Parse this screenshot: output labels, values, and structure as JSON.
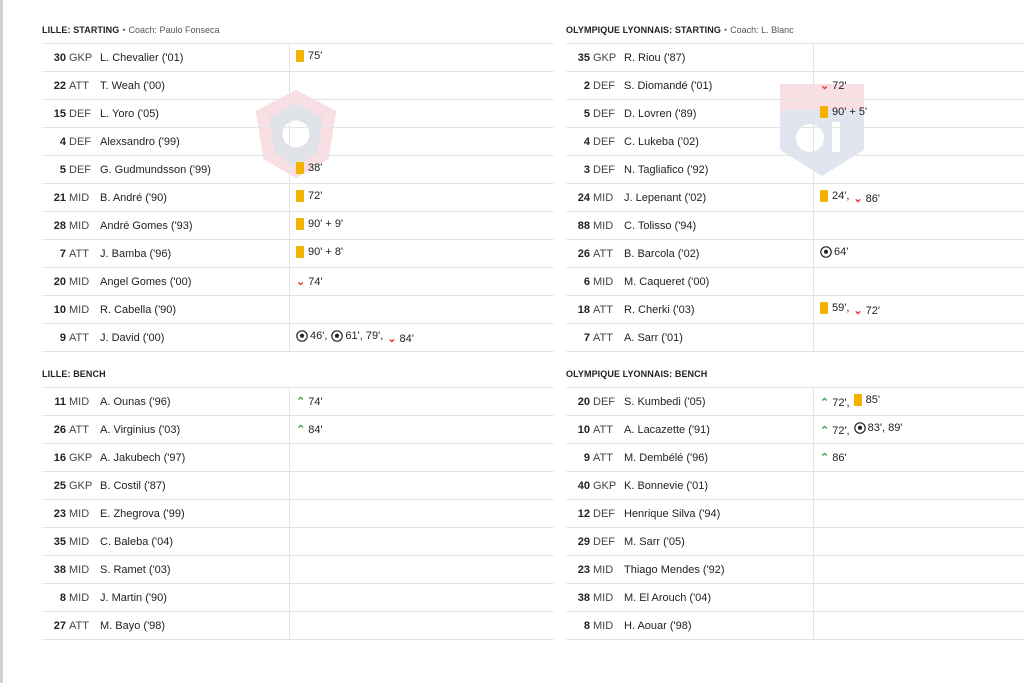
{
  "lille_starting": {
    "title": "LILLE: STARTING",
    "coach": "Coach: Paulo Fonseca",
    "rows": [
      {
        "num": "30",
        "pos": "GKP",
        "name": "L. Chevalier ('01)",
        "events": [
          {
            "t": "yellow",
            "v": "75'"
          }
        ]
      },
      {
        "num": "22",
        "pos": "ATT",
        "name": "T. Weah ('00)",
        "events": []
      },
      {
        "num": "15",
        "pos": "DEF",
        "name": "L. Yoro ('05)",
        "events": []
      },
      {
        "num": "4",
        "pos": "DEF",
        "name": "Alexsandro ('99)",
        "events": []
      },
      {
        "num": "5",
        "pos": "DEF",
        "name": "G. Gudmundsson ('99)",
        "events": [
          {
            "t": "yellow",
            "v": "38'"
          }
        ]
      },
      {
        "num": "21",
        "pos": "MID",
        "name": "B. André ('90)",
        "events": [
          {
            "t": "yellow",
            "v": "72'"
          }
        ]
      },
      {
        "num": "28",
        "pos": "MID",
        "name": "André Gomes ('93)",
        "events": [
          {
            "t": "yellow",
            "v": "90' + 9'"
          }
        ]
      },
      {
        "num": "7",
        "pos": "ATT",
        "name": "J. Bamba ('96)",
        "events": [
          {
            "t": "yellow",
            "v": "90' + 8'"
          }
        ]
      },
      {
        "num": "20",
        "pos": "MID",
        "name": "Angel Gomes ('00)",
        "events": [
          {
            "t": "off",
            "v": "74'"
          }
        ]
      },
      {
        "num": "10",
        "pos": "MID",
        "name": "R. Cabella ('90)",
        "events": []
      },
      {
        "num": "9",
        "pos": "ATT",
        "name": "J. David ('00)",
        "events": [
          {
            "t": "goal",
            "v": "46',"
          },
          {
            "t": "goal",
            "v": "61', 79',"
          },
          {
            "t": "off",
            "v": "84'"
          }
        ]
      }
    ]
  },
  "lille_bench": {
    "title": "LILLE: BENCH",
    "rows": [
      {
        "num": "11",
        "pos": "MID",
        "name": "A. Ounas ('96)",
        "events": [
          {
            "t": "on",
            "v": "74'"
          }
        ]
      },
      {
        "num": "26",
        "pos": "ATT",
        "name": "A. Virginius ('03)",
        "events": [
          {
            "t": "on",
            "v": "84'"
          }
        ]
      },
      {
        "num": "16",
        "pos": "GKP",
        "name": "A. Jakubech ('97)",
        "events": []
      },
      {
        "num": "25",
        "pos": "GKP",
        "name": "B. Costil ('87)",
        "events": []
      },
      {
        "num": "23",
        "pos": "MID",
        "name": "E. Zhegrova ('99)",
        "events": []
      },
      {
        "num": "35",
        "pos": "MID",
        "name": "C. Baleba ('04)",
        "events": []
      },
      {
        "num": "38",
        "pos": "MID",
        "name": "S. Ramet ('03)",
        "events": []
      },
      {
        "num": "8",
        "pos": "MID",
        "name": "J. Martin ('90)",
        "events": []
      },
      {
        "num": "27",
        "pos": "ATT",
        "name": "M. Bayo ('98)",
        "events": []
      }
    ]
  },
  "lyon_starting": {
    "title": "OLYMPIQUE LYONNAIS: STARTING",
    "coach": "Coach: L. Blanc",
    "rows": [
      {
        "num": "35",
        "pos": "GKP",
        "name": "R. Riou ('87)",
        "events": []
      },
      {
        "num": "2",
        "pos": "DEF",
        "name": "S. Diomandé ('01)",
        "events": [
          {
            "t": "off",
            "v": "72'"
          }
        ]
      },
      {
        "num": "5",
        "pos": "DEF",
        "name": "D. Lovren ('89)",
        "events": [
          {
            "t": "yellow",
            "v": "90' + 5'"
          }
        ]
      },
      {
        "num": "4",
        "pos": "DEF",
        "name": "C. Lukeba ('02)",
        "events": []
      },
      {
        "num": "3",
        "pos": "DEF",
        "name": "N. Tagliafico ('92)",
        "events": []
      },
      {
        "num": "24",
        "pos": "MID",
        "name": "J. Lepenant ('02)",
        "events": [
          {
            "t": "yellow",
            "v": "24',"
          },
          {
            "t": "off",
            "v": "86'"
          }
        ]
      },
      {
        "num": "88",
        "pos": "MID",
        "name": "C. Tolisso ('94)",
        "events": []
      },
      {
        "num": "26",
        "pos": "ATT",
        "name": "B. Barcola ('02)",
        "events": [
          {
            "t": "goal",
            "v": "64'"
          }
        ]
      },
      {
        "num": "6",
        "pos": "MID",
        "name": "M. Caqueret ('00)",
        "events": []
      },
      {
        "num": "18",
        "pos": "ATT",
        "name": "R. Cherki ('03)",
        "events": [
          {
            "t": "yellow",
            "v": "59',"
          },
          {
            "t": "off",
            "v": "72'"
          }
        ]
      },
      {
        "num": "7",
        "pos": "ATT",
        "name": "A. Sarr ('01)",
        "events": []
      }
    ]
  },
  "lyon_bench": {
    "title": "OLYMPIQUE LYONNAIS: BENCH",
    "rows": [
      {
        "num": "20",
        "pos": "DEF",
        "name": "S. Kumbedi ('05)",
        "events": [
          {
            "t": "on",
            "v": "72',"
          },
          {
            "t": "yellow",
            "v": "85'"
          }
        ]
      },
      {
        "num": "10",
        "pos": "ATT",
        "name": "A. Lacazette ('91)",
        "events": [
          {
            "t": "on",
            "v": "72',"
          },
          {
            "t": "goal",
            "v": "83', 89'"
          }
        ]
      },
      {
        "num": "9",
        "pos": "ATT",
        "name": "M. Dembélé ('96)",
        "events": [
          {
            "t": "on",
            "v": "86'"
          }
        ]
      },
      {
        "num": "40",
        "pos": "GKP",
        "name": "K. Bonnevie ('01)",
        "events": []
      },
      {
        "num": "12",
        "pos": "DEF",
        "name": "Henrique Silva ('94)",
        "events": []
      },
      {
        "num": "29",
        "pos": "DEF",
        "name": "M. Sarr ('05)",
        "events": []
      },
      {
        "num": "23",
        "pos": "MID",
        "name": "Thiago Mendes ('92)",
        "events": []
      },
      {
        "num": "38",
        "pos": "MID",
        "name": "M. El Arouch ('04)",
        "events": []
      },
      {
        "num": "8",
        "pos": "MID",
        "name": "H. Aouar ('98)",
        "events": []
      }
    ]
  },
  "icons": {
    "yellow": "yellow-card-icon",
    "off": "sub-off-icon",
    "on": "sub-on-icon",
    "goal": "goal-ball-icon"
  },
  "colors": {
    "yellow_card": "#f2b200",
    "sub_off": "#e23b2e",
    "sub_on": "#2fa84f"
  }
}
